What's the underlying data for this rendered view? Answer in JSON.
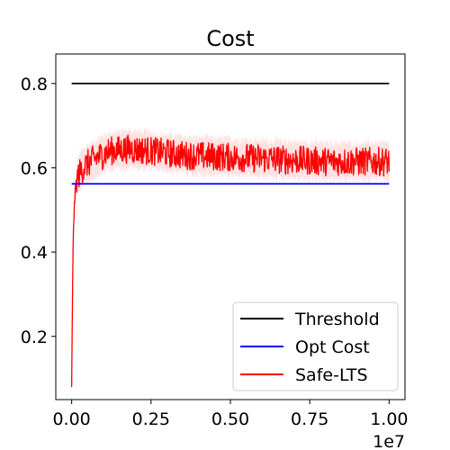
{
  "chart_data": {
    "type": "line",
    "title": "Cost",
    "xlabel": "",
    "ylabel": "",
    "x_offset_label": "1e7",
    "xlim": [
      -0.05,
      1.05
    ],
    "ylim": [
      0.05,
      0.87
    ],
    "x_ticks": [
      0.0,
      0.25,
      0.5,
      0.75,
      1.0
    ],
    "x_tick_labels": [
      "0.00",
      "0.25",
      "0.50",
      "0.75",
      "1.00"
    ],
    "y_ticks": [
      0.2,
      0.4,
      0.6,
      0.8
    ],
    "y_tick_labels": [
      "0.2",
      "0.4",
      "0.6",
      "0.8"
    ],
    "grid": false,
    "legend_position": "lower-right",
    "series": [
      {
        "name": "Threshold",
        "color": "#000000",
        "kind": "constant",
        "x": [
          0.0,
          1.0
        ],
        "values": [
          0.8,
          0.8
        ]
      },
      {
        "name": "Opt Cost",
        "color": "#0000ff",
        "kind": "constant",
        "x": [
          0.0,
          1.0
        ],
        "values": [
          0.562,
          0.562
        ]
      },
      {
        "name": "Safe-LTS",
        "color": "#ff0000",
        "band_color": "#ffd6d6",
        "kind": "noisy",
        "x": [
          0.0,
          0.002,
          0.005,
          0.01,
          0.015,
          0.02,
          0.03,
          0.05,
          0.08,
          0.12,
          0.18,
          0.25,
          0.35,
          0.5,
          0.65,
          0.8,
          1.0
        ],
        "values": [
          0.08,
          0.25,
          0.45,
          0.53,
          0.565,
          0.58,
          0.595,
          0.61,
          0.625,
          0.64,
          0.645,
          0.64,
          0.63,
          0.625,
          0.62,
          0.615,
          0.615
        ],
        "noise_amplitude": 0.035,
        "band_amplitude": 0.055
      }
    ]
  }
}
